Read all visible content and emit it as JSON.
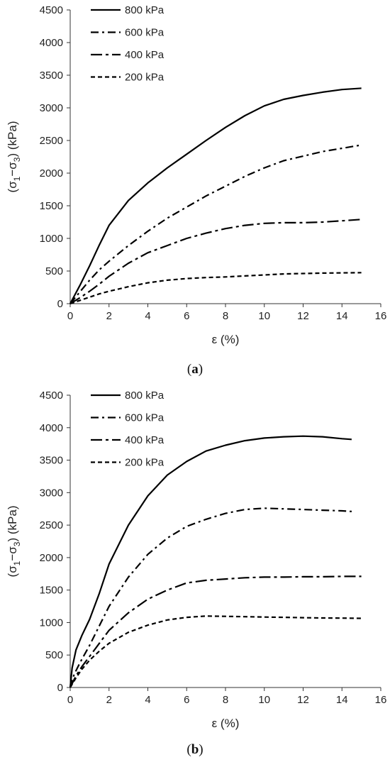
{
  "chart_data": [
    {
      "type": "line",
      "panel_label": "a",
      "xlabel": "ε (%)",
      "ylabel_parts": [
        "(σ",
        "1",
        "−σ",
        "3",
        ") (kPa)"
      ],
      "xlim": [
        0,
        16
      ],
      "ylim": [
        0,
        4500
      ],
      "xticks": [
        "0",
        "2",
        "4",
        "6",
        "8",
        "10",
        "12",
        "14",
        "16"
      ],
      "yticks": [
        "0",
        "500",
        "1000",
        "1500",
        "2000",
        "2500",
        "3000",
        "3500",
        "4000",
        "4500"
      ],
      "legend_position": "top-left",
      "series": [
        {
          "name": "800 kPa",
          "dash": "solid",
          "x": [
            0,
            0.5,
            1,
            1.5,
            2,
            3,
            4,
            5,
            6,
            7,
            8,
            9,
            10,
            11,
            12,
            13,
            14,
            15
          ],
          "y": [
            0,
            280,
            580,
            900,
            1200,
            1580,
            1850,
            2080,
            2290,
            2500,
            2700,
            2880,
            3030,
            3130,
            3190,
            3240,
            3280,
            3300
          ]
        },
        {
          "name": "600 kPa",
          "dash": "dashdot",
          "x": [
            0,
            0.5,
            1,
            1.5,
            2,
            3,
            4,
            5,
            6,
            7,
            8,
            9,
            10,
            11,
            12,
            13,
            14,
            15
          ],
          "y": [
            0,
            180,
            360,
            520,
            650,
            890,
            1110,
            1310,
            1480,
            1650,
            1800,
            1950,
            2080,
            2190,
            2260,
            2330,
            2380,
            2430
          ]
        },
        {
          "name": "400 kPa",
          "dash": "longdash",
          "x": [
            0,
            0.5,
            1,
            1.5,
            2,
            3,
            4,
            5,
            6,
            7,
            8,
            9,
            10,
            11,
            12,
            13,
            14,
            15
          ],
          "y": [
            0,
            90,
            190,
            300,
            420,
            620,
            780,
            890,
            1000,
            1080,
            1150,
            1200,
            1230,
            1240,
            1240,
            1250,
            1270,
            1290
          ]
        },
        {
          "name": "200 kPa",
          "dash": "short",
          "x": [
            0,
            0.5,
            1,
            1.5,
            2,
            3,
            4,
            5,
            6,
            7,
            8,
            9,
            10,
            11,
            12,
            13,
            14,
            15
          ],
          "y": [
            0,
            50,
            100,
            150,
            190,
            260,
            320,
            360,
            385,
            400,
            410,
            425,
            440,
            455,
            462,
            468,
            472,
            475
          ]
        }
      ]
    },
    {
      "type": "line",
      "panel_label": "b",
      "xlabel": "ε (%)",
      "ylabel_parts": [
        "(σ",
        "1",
        "−σ",
        "3",
        ") (kPa)"
      ],
      "xlim": [
        0,
        16
      ],
      "ylim": [
        0,
        4500
      ],
      "xticks": [
        "0",
        "2",
        "4",
        "6",
        "8",
        "10",
        "12",
        "14",
        "16"
      ],
      "yticks": [
        "0",
        "500",
        "1000",
        "1500",
        "2000",
        "2500",
        "3000",
        "3500",
        "4000",
        "4500"
      ],
      "legend_position": "top-left",
      "series": [
        {
          "name": "800 kPa",
          "dash": "solid",
          "x": [
            0,
            0.1,
            0.3,
            0.6,
            1,
            1.5,
            2,
            3,
            4,
            5,
            6,
            7,
            8,
            9,
            10,
            11,
            12,
            13,
            14,
            14.5
          ],
          "y": [
            0,
            300,
            580,
            800,
            1050,
            1450,
            1900,
            2500,
            2950,
            3270,
            3480,
            3640,
            3730,
            3800,
            3840,
            3860,
            3870,
            3860,
            3830,
            3820
          ]
        },
        {
          "name": "600 kPa",
          "dash": "dashdot",
          "x": [
            0,
            0.2,
            0.5,
            1,
            1.5,
            2,
            3,
            4,
            5,
            6,
            7,
            8,
            9,
            10,
            11,
            12,
            13,
            14,
            14.5
          ],
          "y": [
            0,
            200,
            380,
            650,
            950,
            1250,
            1700,
            2050,
            2300,
            2480,
            2590,
            2680,
            2740,
            2760,
            2750,
            2740,
            2730,
            2720,
            2710
          ]
        },
        {
          "name": "400 kPa",
          "dash": "longdash",
          "x": [
            0,
            0.3,
            0.6,
            1,
            1.5,
            2,
            3,
            4,
            5,
            6,
            7,
            8,
            9,
            10,
            11,
            12,
            13,
            14,
            15
          ],
          "y": [
            0,
            180,
            320,
            480,
            680,
            880,
            1150,
            1360,
            1500,
            1610,
            1650,
            1670,
            1690,
            1700,
            1700,
            1705,
            1705,
            1710,
            1710
          ]
        },
        {
          "name": "200 kPa",
          "dash": "short",
          "x": [
            0,
            0.3,
            0.6,
            1,
            1.5,
            2,
            3,
            4,
            5,
            6,
            7,
            8,
            9,
            10,
            11,
            12,
            13,
            14,
            15
          ],
          "y": [
            0,
            150,
            280,
            420,
            560,
            680,
            850,
            960,
            1040,
            1080,
            1100,
            1095,
            1090,
            1085,
            1080,
            1075,
            1070,
            1068,
            1065
          ]
        }
      ]
    }
  ]
}
